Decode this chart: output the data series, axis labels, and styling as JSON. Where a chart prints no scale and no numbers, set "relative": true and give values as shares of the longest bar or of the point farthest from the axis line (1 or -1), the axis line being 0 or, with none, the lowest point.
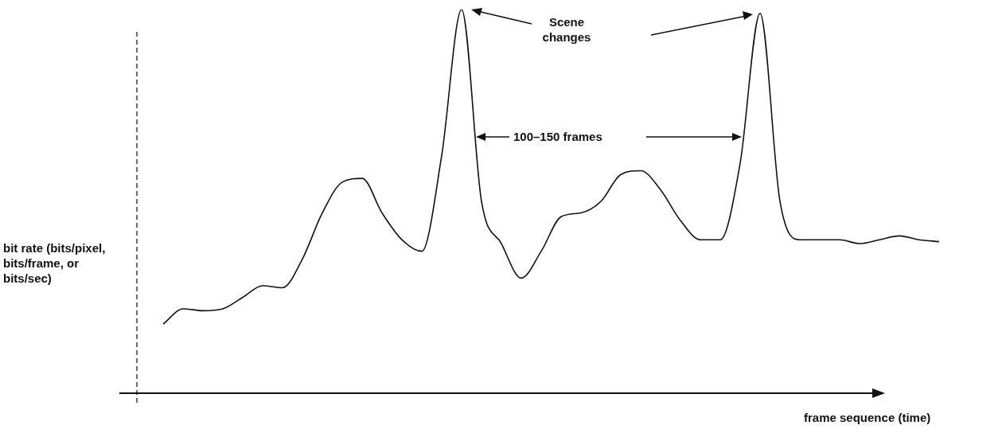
{
  "chart_data": {
    "type": "line",
    "relative": true,
    "xlabel": "frame sequence (time)",
    "ylabel": "bit rate (bits/pixel, bits/frame, or bits/sec)",
    "categories": [
      null,
      null,
      null,
      null,
      null,
      null,
      null,
      null,
      null,
      null,
      null,
      null,
      null,
      null,
      null,
      null,
      null,
      null,
      null,
      null,
      null,
      null,
      null,
      null,
      null,
      null,
      null,
      null,
      null,
      null,
      null,
      null,
      null,
      null,
      null,
      null,
      null,
      null,
      null,
      null
    ],
    "series": [
      {
        "color": "#111111",
        "values": [
          0.18,
          0.22,
          0.215,
          0.22,
          0.25,
          0.28,
          0.275,
          0.35,
          0.47,
          0.55,
          0.56,
          0.47,
          0.4,
          0.37,
          0.62,
          1.0,
          0.5,
          0.39,
          0.3,
          0.37,
          0.46,
          0.47,
          0.5,
          0.57,
          0.58,
          0.53,
          0.45,
          0.4,
          0.4,
          0.6,
          0.99,
          0.5,
          0.4,
          0.4,
          0.4,
          0.39,
          0.4,
          0.41,
          0.4,
          0.395
        ]
      }
    ],
    "annotations": [
      "Scene changes",
      "100–150 frames"
    ],
    "marker": "none",
    "line_style": "solid",
    "legend": false
  }
}
